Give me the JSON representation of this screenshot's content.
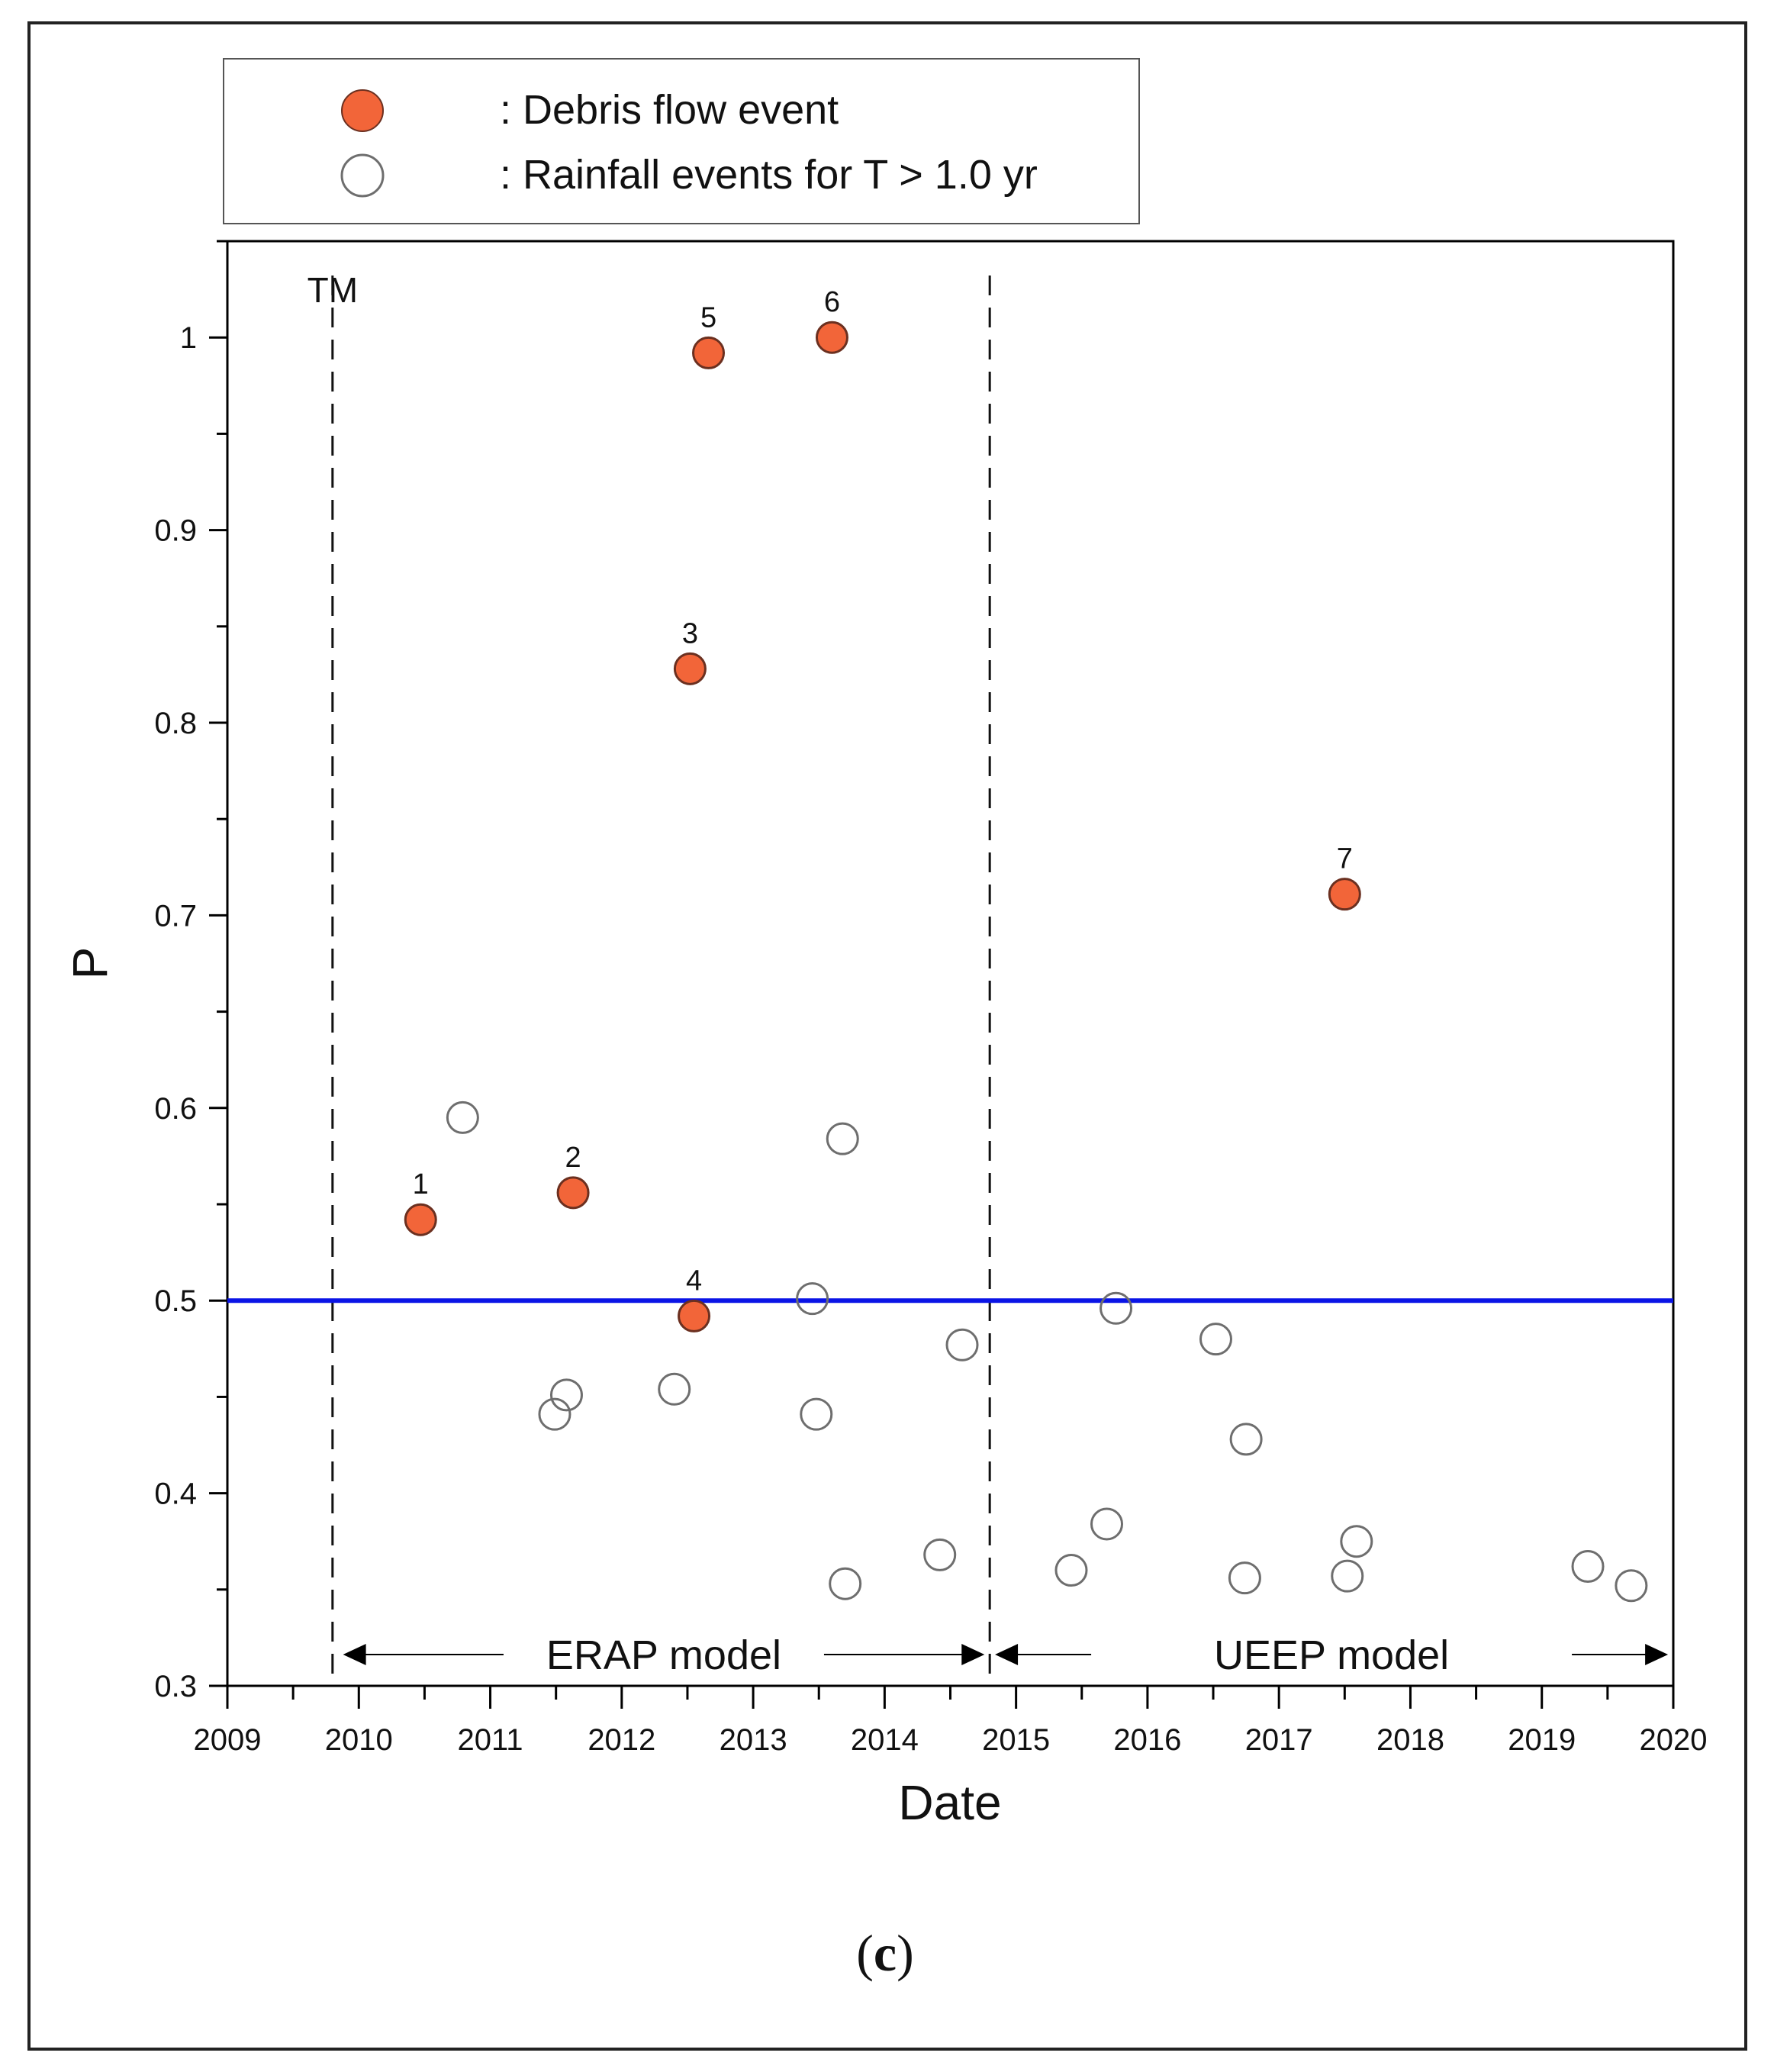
{
  "caption": {
    "open": "(",
    "letter": "c",
    "close": ")"
  },
  "chart_data": {
    "type": "scatter",
    "xlabel": "Date",
    "ylabel": "P",
    "xlim": [
      2009,
      2020
    ],
    "ylim": [
      0.3,
      1.05
    ],
    "x_ticks": [
      "2009",
      "2010",
      "2011",
      "2012",
      "2013",
      "2014",
      "2015",
      "2016",
      "2017",
      "2018",
      "2019",
      "2020"
    ],
    "y_ticks": [
      {
        "v": 0.4,
        "label": "0.4"
      },
      {
        "v": 0.5,
        "label": "0.5"
      },
      {
        "v": 0.6,
        "label": "0.6"
      },
      {
        "v": 0.7,
        "label": "0.7"
      },
      {
        "v": 0.8,
        "label": "0.8"
      },
      {
        "v": 0.9,
        "label": "0.9"
      },
      {
        "v": 1.0,
        "label": "1"
      }
    ],
    "y_bottom_label": "0.3",
    "legend": [
      {
        "text": ": Debris flow event",
        "marker": "filled",
        "color": "#f26539"
      },
      {
        "text": ": Rainfall events for T > 1.0 yr",
        "marker": "open",
        "color": "#6e6e6e"
      }
    ],
    "threshold": {
      "y": 0.5,
      "color": "#0a14e6"
    },
    "vlines": [
      {
        "x": 2009.8,
        "label": "TM"
      },
      {
        "x": 2014.8,
        "label": ""
      }
    ],
    "model_spans": [
      {
        "label": "ERAP model",
        "from": 2009.88,
        "to": 2014.76
      },
      {
        "label": "UEEP model",
        "from": 2014.84,
        "to": 2019.96
      }
    ],
    "series": [
      {
        "name": "Debris flow event",
        "marker": "filled",
        "points": [
          {
            "x": 2010.47,
            "y": 0.542,
            "label": "1"
          },
          {
            "x": 2011.63,
            "y": 0.556,
            "label": "2"
          },
          {
            "x": 2012.52,
            "y": 0.828,
            "label": "3"
          },
          {
            "x": 2012.55,
            "y": 0.492,
            "label": "4"
          },
          {
            "x": 2012.66,
            "y": 0.992,
            "label": "5"
          },
          {
            "x": 2013.6,
            "y": 1.0,
            "label": "6"
          },
          {
            "x": 2017.5,
            "y": 0.711,
            "label": "7"
          }
        ]
      },
      {
        "name": "Rainfall events for T > 1.0 yr",
        "marker": "open",
        "points": [
          {
            "x": 2010.79,
            "y": 0.595
          },
          {
            "x": 2011.49,
            "y": 0.441
          },
          {
            "x": 2011.58,
            "y": 0.451
          },
          {
            "x": 2012.4,
            "y": 0.454
          },
          {
            "x": 2013.45,
            "y": 0.501
          },
          {
            "x": 2013.48,
            "y": 0.441
          },
          {
            "x": 2013.68,
            "y": 0.584
          },
          {
            "x": 2013.7,
            "y": 0.353
          },
          {
            "x": 2014.42,
            "y": 0.368
          },
          {
            "x": 2014.59,
            "y": 0.477
          },
          {
            "x": 2015.42,
            "y": 0.36
          },
          {
            "x": 2015.69,
            "y": 0.384
          },
          {
            "x": 2015.76,
            "y": 0.496
          },
          {
            "x": 2016.52,
            "y": 0.48
          },
          {
            "x": 2016.74,
            "y": 0.356
          },
          {
            "x": 2016.75,
            "y": 0.428
          },
          {
            "x": 2017.52,
            "y": 0.357
          },
          {
            "x": 2017.59,
            "y": 0.375
          },
          {
            "x": 2019.35,
            "y": 0.362
          },
          {
            "x": 2019.68,
            "y": 0.352
          }
        ]
      }
    ]
  }
}
